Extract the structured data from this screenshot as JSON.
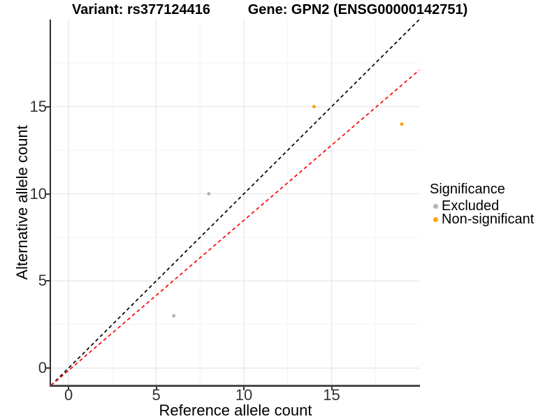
{
  "chart_data": {
    "type": "scatter",
    "titles": {
      "left": "Variant: rs377124416",
      "right": "Gene: GPN2 (ENSG00000142751)"
    },
    "xlabel": "Reference allele count",
    "ylabel": "Alternative allele count",
    "xlim": [
      -1,
      20
    ],
    "ylim": [
      -1,
      20
    ],
    "x_ticks": [
      0,
      5,
      10,
      15
    ],
    "y_ticks": [
      0,
      5,
      10,
      15
    ],
    "x_minor_gridlines": [
      2.5,
      7.5,
      12.5,
      17.5
    ],
    "y_minor_gridlines": [
      2.5,
      7.5,
      12.5,
      17.5
    ],
    "grid": true,
    "colors": {
      "excluded": "#B5B5B8",
      "non_significant": "#FFA40A",
      "identity_line": "#000000",
      "expected_line": "#FF0000",
      "major_grid": "#E7E7E7",
      "minor_grid": "#F3F3F3"
    },
    "series": [
      {
        "name": "Excluded",
        "color": "#B5B5B8",
        "points": [
          [
            6,
            3
          ],
          [
            8,
            10
          ]
        ]
      },
      {
        "name": "Non-significant",
        "color": "#FFA40A",
        "points": [
          [
            14,
            15
          ],
          [
            19,
            14
          ]
        ]
      }
    ],
    "ref_lines": [
      {
        "name": "identity-line",
        "color": "#000000",
        "dashed": true,
        "from": [
          -1,
          -1
        ],
        "to": [
          20,
          20
        ]
      },
      {
        "name": "expected-ratio-line",
        "color": "#FF0000",
        "dashed": true,
        "from": [
          -1,
          -1
        ],
        "to": [
          20,
          17.1
        ]
      }
    ],
    "legend": {
      "title": "Significance",
      "position": "right",
      "entries": [
        {
          "label": "Excluded",
          "color": "#B5B5B8"
        },
        {
          "label": "Non-significant",
          "color": "#FFA40A"
        }
      ]
    }
  }
}
